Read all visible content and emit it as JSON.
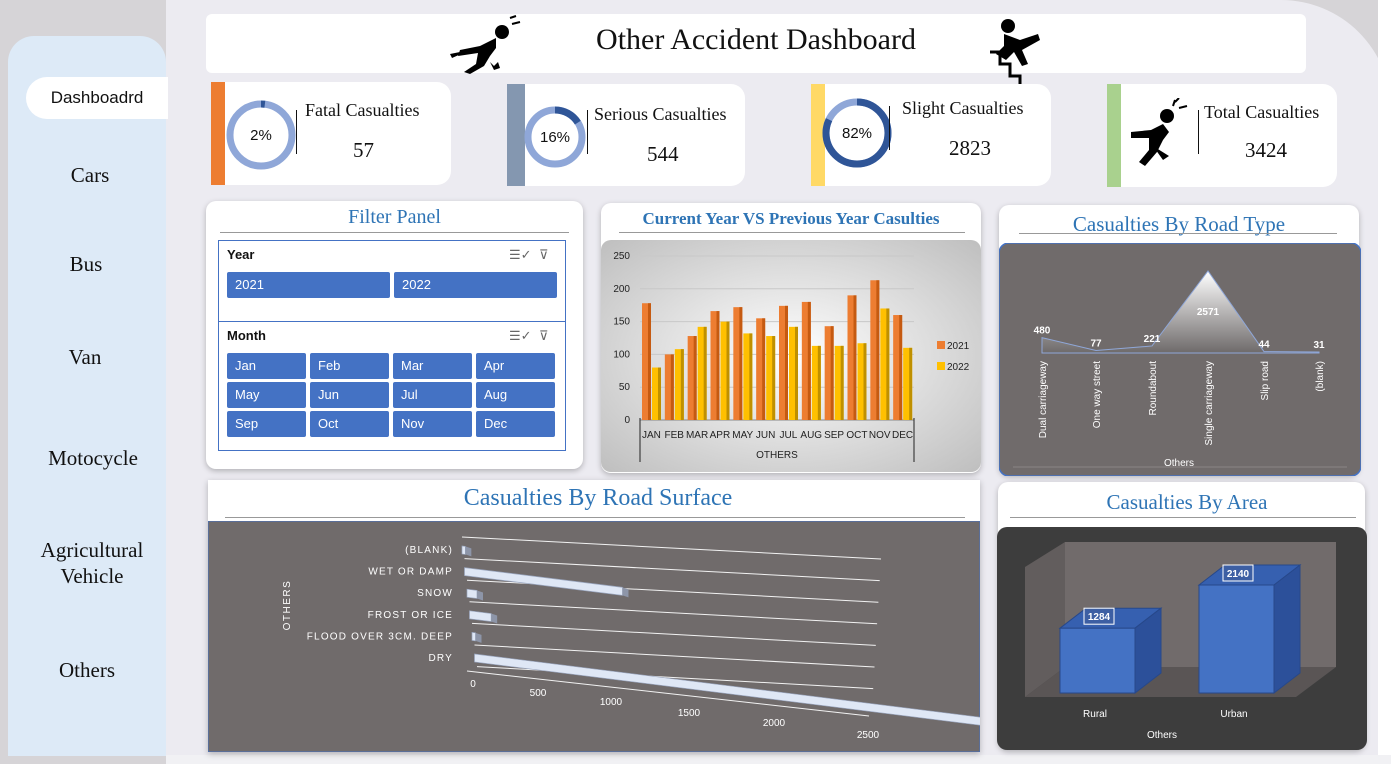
{
  "title": "Other Accident Dashboard",
  "sidebar": {
    "active": "Dashboadrd",
    "items": [
      "Cars",
      "Bus",
      "Van",
      "Motocycle",
      "Agricultural Vehicle",
      "Others"
    ],
    "item_lines": [
      [
        "Cars"
      ],
      [
        "Bus"
      ],
      [
        "Van"
      ],
      [
        "Motocycle"
      ],
      [
        "Agricultural",
        "Vehicle"
      ],
      [
        "Others"
      ]
    ]
  },
  "kpis": [
    {
      "label": "Fatal Casualties",
      "value": "57",
      "percent_text": "2%",
      "percent": 2,
      "accent": "#ed7d31"
    },
    {
      "label": "Serious Casualties",
      "value": "544",
      "percent_text": "16%",
      "percent": 16,
      "accent": "#8497b0"
    },
    {
      "label": "Slight Casualties",
      "value": "2823",
      "percent_text": "82%",
      "percent": 82,
      "accent": "#ffd966"
    },
    {
      "label": "Total Casualties",
      "value": "3424",
      "accent": "#a9d18e"
    }
  ],
  "filter_panel": {
    "title": "Filter Panel",
    "year_label": "Year",
    "years": [
      "2021",
      "2022"
    ],
    "month_label": "Month",
    "months": [
      "Jan",
      "Feb",
      "Mar",
      "Apr",
      "May",
      "Jun",
      "Jul",
      "Aug",
      "Sep",
      "Oct",
      "Nov",
      "Dec"
    ]
  },
  "colors": {
    "accent_blue": "#4472c4",
    "title_blue": "#2e74b5",
    "bar_2021": "#ed7d31",
    "bar_2022": "#ffc000",
    "panel_gray": "#706b6b"
  },
  "chart_data": [
    {
      "type": "bar",
      "title": "Current Year VS Previous Year Casulties",
      "xlabel": "OTHERS",
      "categories": [
        "JAN",
        "FEB",
        "MAR",
        "APR",
        "MAY",
        "JUN",
        "JUL",
        "AUG",
        "SEP",
        "OCT",
        "NOV",
        "DEC"
      ],
      "series": [
        {
          "name": "2021",
          "values": [
            178,
            100,
            128,
            166,
            172,
            155,
            174,
            180,
            143,
            190,
            213,
            160
          ]
        },
        {
          "name": "2022",
          "values": [
            80,
            108,
            142,
            150,
            132,
            128,
            142,
            113,
            113,
            117,
            170,
            110
          ]
        }
      ],
      "ylim": [
        0,
        250
      ],
      "yticks": [
        0,
        50,
        100,
        150,
        200,
        250
      ],
      "legend": "right"
    },
    {
      "type": "area",
      "title": "Casualties By Road Type",
      "xlabel": "Others",
      "categories": [
        "Dual carriageway",
        "One way street",
        "Roundabout",
        "Single carriageway",
        "Slip road",
        "(blank)"
      ],
      "values": [
        480,
        77,
        221,
        2571,
        44,
        31
      ]
    },
    {
      "type": "bar",
      "orientation": "horizontal",
      "title": "Casualties By Road Surface",
      "ylabel": "OTHERS",
      "categories": [
        "(BLANK)",
        "WET OR DAMP",
        "SNOW",
        "FROST OR ICE",
        "FLOOD OVER 3CM. DEEP",
        "DRY"
      ],
      "values": [
        20,
        860,
        50,
        100,
        15,
        2260
      ],
      "xticks": [
        0,
        500,
        1000,
        1500,
        2000,
        2500
      ],
      "xlim": [
        0,
        2500
      ]
    },
    {
      "type": "bar",
      "title": "Casualties By Area",
      "xlabel": "Others",
      "categories": [
        "Rural",
        "Urban"
      ],
      "values": [
        1284,
        2140
      ]
    }
  ]
}
